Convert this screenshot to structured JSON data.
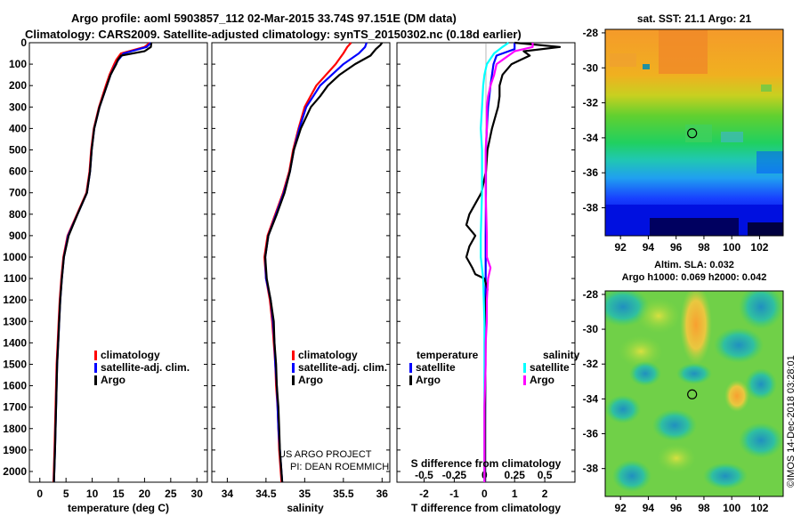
{
  "header": {
    "line1": "Argo profile: aoml 5903857_112 02-Mar-2015 33.74S 97.151E (DM data)",
    "line2": "Climatology: CARS2009. Satellite-adjusted climatology: synTS_20150302.nc (0.18d earlier)"
  },
  "credits": {
    "project": "US ARGO PROJECT",
    "pi": "PI: DEAN ROEMMICH",
    "imos": "©IMOS 14-Dec-2018 03:28:01"
  },
  "colors": {
    "climatology": "#ff0000",
    "satellite": "#0000ff",
    "argo": "#000000",
    "s_satellite": "#00ffff",
    "s_argo": "#ff00ff"
  },
  "chart_data": [
    {
      "id": "temperature",
      "type": "line",
      "xlabel": "temperature (deg C)",
      "ylabel": "pressure",
      "xlim": [
        -2,
        32
      ],
      "ylim": [
        2050,
        0
      ],
      "xticks": [
        "0",
        "5",
        "10",
        "15",
        "20",
        "25",
        "30"
      ],
      "xtick_values": [
        0,
        5,
        10,
        15,
        20,
        25,
        30
      ],
      "yticks": [
        0,
        100,
        200,
        300,
        400,
        500,
        600,
        700,
        800,
        900,
        1000,
        1100,
        1200,
        1300,
        1400,
        1500,
        1600,
        1700,
        1800,
        1900,
        2000
      ],
      "legend": [
        "climatology",
        "satellite-adj. clim.",
        "Argo"
      ],
      "series": [
        {
          "name": "climatology",
          "color": "#ff0000",
          "p": [
            0,
            20,
            50,
            80,
            100,
            150,
            200,
            300,
            400,
            500,
            600,
            700,
            800,
            900,
            1000,
            1100,
            1200,
            1300,
            1400,
            1500,
            1600,
            1700,
            1800,
            1900,
            2050
          ],
          "x": [
            21.0,
            20.0,
            15.5,
            14.6,
            14.2,
            13.3,
            12.6,
            11.3,
            10.3,
            9.8,
            9.5,
            8.9,
            7.1,
            5.3,
            4.5,
            4.1,
            3.8,
            3.6,
            3.4,
            3.2,
            3.1,
            3.0,
            2.9,
            2.8,
            2.6
          ]
        },
        {
          "name": "satellite-adj. clim.",
          "color": "#0000ff",
          "p": [
            0,
            20,
            50,
            80,
            100,
            150,
            200,
            300,
            400,
            500,
            600,
            700,
            800,
            900,
            1000,
            1100,
            1200,
            1300,
            1400,
            1500,
            1600,
            1700,
            1800,
            1900,
            2050
          ],
          "x": [
            21.2,
            20.4,
            16.0,
            15.0,
            14.5,
            13.5,
            12.8,
            11.4,
            10.4,
            9.9,
            9.6,
            9.0,
            7.2,
            5.4,
            4.6,
            4.2,
            3.9,
            3.7,
            3.5,
            3.3,
            3.2,
            3.1,
            3.0,
            2.9,
            2.7
          ]
        },
        {
          "name": "Argo",
          "color": "#000000",
          "p": [
            0,
            20,
            40,
            60,
            80,
            100,
            150,
            200,
            300,
            400,
            500,
            600,
            700,
            800,
            900,
            1000,
            1100,
            1200,
            1300,
            1400,
            1500,
            1600,
            1700,
            1800,
            1900,
            2050
          ],
          "x": [
            21.3,
            21.2,
            20.0,
            15.5,
            14.9,
            14.6,
            13.5,
            12.8,
            11.4,
            10.4,
            9.9,
            9.6,
            9.0,
            7.2,
            5.5,
            4.6,
            4.2,
            3.9,
            3.7,
            3.5,
            3.3,
            3.2,
            3.1,
            3.0,
            2.9,
            2.7
          ]
        }
      ]
    },
    {
      "id": "salinity",
      "type": "line",
      "xlabel": "salinity",
      "xlim": [
        33.8,
        36.1
      ],
      "ylim": [
        2050,
        0
      ],
      "xticks": [
        "34",
        "34.5",
        "35",
        "35.5",
        "36"
      ],
      "xtick_values": [
        34,
        34.5,
        35,
        35.5,
        36
      ],
      "legend": [
        "climatology",
        "satellite-adj. clim.",
        "Argo"
      ],
      "series": [
        {
          "name": "climatology",
          "color": "#ff0000",
          "p": [
            0,
            20,
            50,
            100,
            200,
            300,
            400,
            500,
            600,
            700,
            800,
            900,
            1000,
            1100,
            1200,
            1300,
            1400,
            1500,
            1600,
            1700,
            1800,
            1900,
            2050
          ],
          "x": [
            35.6,
            35.55,
            35.5,
            35.4,
            35.15,
            35.0,
            34.92,
            34.85,
            34.8,
            34.72,
            34.62,
            34.52,
            34.48,
            34.5,
            34.55,
            34.58,
            34.6,
            34.62,
            34.63,
            34.65,
            34.66,
            34.67,
            34.7
          ]
        },
        {
          "name": "satellite-adj. clim.",
          "color": "#0000ff",
          "p": [
            0,
            20,
            50,
            100,
            200,
            300,
            400,
            500,
            600,
            700,
            800,
            900,
            1000,
            1100,
            1200,
            1300,
            1400,
            1500,
            1600,
            1700,
            1800,
            1900,
            2050
          ],
          "x": [
            35.8,
            35.78,
            35.7,
            35.5,
            35.2,
            35.02,
            34.93,
            34.86,
            34.81,
            34.73,
            34.63,
            34.53,
            34.49,
            34.5,
            34.56,
            34.59,
            34.61,
            34.62,
            34.64,
            34.65,
            34.66,
            34.68,
            34.71
          ]
        },
        {
          "name": "Argo",
          "color": "#000000",
          "p": [
            0,
            10,
            30,
            60,
            100,
            150,
            200,
            250,
            300,
            400,
            500,
            600,
            700,
            800,
            900,
            1000,
            1100,
            1200,
            1300,
            1400,
            1500,
            1600,
            1700,
            1800,
            1900,
            2050
          ],
          "x": [
            36.0,
            35.98,
            35.92,
            35.85,
            35.65,
            35.45,
            35.3,
            35.2,
            35.08,
            34.95,
            34.86,
            34.81,
            34.74,
            34.64,
            34.53,
            34.49,
            34.51,
            34.56,
            34.6,
            34.61,
            34.63,
            34.64,
            34.66,
            34.67,
            34.68,
            34.71
          ]
        }
      ]
    },
    {
      "id": "difference",
      "type": "line",
      "xlabel": "T difference from climatology",
      "x2label": "S difference from climatology",
      "xlim": [
        -2.9,
        3.0
      ],
      "x2lim": [
        -0.725,
        0.75
      ],
      "ylim": [
        2050,
        0
      ],
      "xticks": [
        "-2",
        "-1",
        "0",
        "1",
        "2"
      ],
      "xtick_values": [
        -2,
        -1,
        0,
        1,
        2
      ],
      "x2ticks": [
        "-0.5",
        "-0.25",
        "0",
        "0.25",
        "0.5"
      ],
      "x2tick_values": [
        -0.5,
        -0.25,
        0,
        0.25,
        0.5
      ],
      "legend_left_title": "temperature",
      "legend_right_title": "salinity",
      "legend_left": [
        "satellite",
        "Argo"
      ],
      "legend_right": [
        "satellite",
        "Argo"
      ],
      "series": [
        {
          "name": "T satellite",
          "color": "#0000ff",
          "p": [
            0,
            30,
            60,
            100,
            150,
            200,
            300,
            400,
            500,
            700,
            900,
            1100,
            1300,
            1500,
            1800,
            2050
          ],
          "x": [
            1.0,
            1.0,
            0.4,
            0.3,
            0.25,
            0.2,
            0.12,
            0.08,
            0.05,
            0.05,
            0.04,
            0.04,
            0.03,
            0.03,
            0.02,
            0.02
          ]
        },
        {
          "name": "T Argo",
          "color": "#000000",
          "p": [
            0,
            20,
            40,
            60,
            80,
            100,
            150,
            200,
            250,
            300,
            400,
            500,
            600,
            700,
            800,
            850,
            900,
            950,
            1000,
            1050,
            1080,
            1100,
            1150,
            1200,
            1300,
            1500,
            1700,
            1900,
            2050
          ],
          "x": [
            1.0,
            2.5,
            1.3,
            1.5,
            1.2,
            0.9,
            0.6,
            0.5,
            0.5,
            0.45,
            0.25,
            0.1,
            0.05,
            -0.1,
            -0.5,
            -0.6,
            -0.3,
            -0.5,
            -0.6,
            -0.4,
            -0.3,
            0.0,
            0.1,
            0.05,
            0.05,
            0.03,
            0.02,
            0.02,
            0.02
          ]
        },
        {
          "name": "S satellite",
          "color": "#00ffff",
          "p": [
            0,
            20,
            50,
            100,
            150,
            200,
            300,
            400,
            500,
            700,
            900,
            1000,
            1100,
            1300,
            1500,
            1800,
            2050
          ],
          "x": [
            0.2,
            0.15,
            0.08,
            0.02,
            0.0,
            -0.01,
            -0.02,
            -0.03,
            -0.02,
            -0.02,
            -0.03,
            -0.03,
            -0.01,
            0.0,
            0.0,
            0.0,
            0.0
          ]
        },
        {
          "name": "S Argo",
          "color": "#ff00ff",
          "p": [
            0,
            20,
            40,
            80,
            100,
            150,
            200,
            250,
            300,
            400,
            500,
            700,
            900,
            1000,
            1050,
            1100,
            1200,
            1300,
            1400,
            1500,
            1700,
            1900,
            2050
          ],
          "x": [
            0.4,
            0.4,
            0.25,
            0.15,
            0.1,
            0.08,
            0.05,
            0.03,
            0.02,
            0.02,
            0.01,
            0.01,
            0.02,
            0.02,
            0.05,
            0.03,
            0.02,
            0.02,
            0.01,
            0.01,
            0.0,
            0.0,
            0.0
          ]
        }
      ]
    }
  ],
  "maps": [
    {
      "id": "sst-map",
      "title": "sat. SST: 21.1 Argo: 21",
      "lon_ticks": [
        "92",
        "94",
        "96",
        "98",
        "100",
        "102"
      ],
      "lat_ticks": [
        "-28",
        "-30",
        "-32",
        "-34",
        "-36",
        "-38"
      ],
      "argo_position": {
        "lon": 97.151,
        "lat": -33.74
      }
    },
    {
      "id": "sla-map",
      "title_line1": "Altim. SLA: 0.032",
      "title_line2": "Argo h1000: 0.069 h2000: 0.042",
      "lon_ticks": [
        "92",
        "94",
        "96",
        "98",
        "100",
        "102"
      ],
      "lat_ticks": [
        "-28",
        "-30",
        "-32",
        "-34",
        "-36",
        "-38"
      ],
      "argo_position": {
        "lon": 97.151,
        "lat": -33.74
      }
    }
  ]
}
